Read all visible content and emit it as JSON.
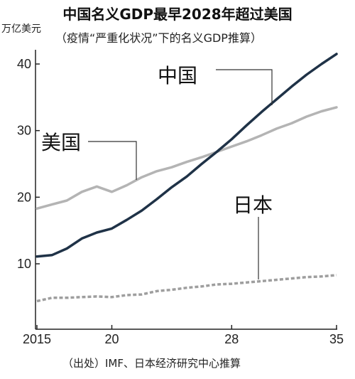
{
  "header": {
    "title": "中国名义GDP最早2028年超过美国",
    "subtitle": "（疫情“严重化状况”下的名义GDP推算）",
    "unit": "万亿美元"
  },
  "footer": {
    "source": "（出处）IMF、日本经济研究中心推算"
  },
  "chart_data": {
    "type": "line",
    "title": "中国名义GDP最早2028年超过美国",
    "subtitle": "（疫情“严重化状况”下的名义GDP推算）",
    "ylabel": "万亿美元",
    "xlim": [
      2015,
      2035
    ],
    "ylim": [
      0,
      45
    ],
    "x_ticks": [
      2015,
      2020,
      2028,
      2035
    ],
    "x_tick_labels": [
      "2015",
      "20",
      "28",
      "35"
    ],
    "y_ticks": [
      10,
      20,
      30,
      40
    ],
    "y_tick_labels": [
      "10",
      "20",
      "30",
      "40"
    ],
    "grid": false,
    "x": [
      2015,
      2016,
      2017,
      2018,
      2019,
      2020,
      2021,
      2022,
      2023,
      2024,
      2025,
      2026,
      2027,
      2028,
      2029,
      2030,
      2031,
      2032,
      2033,
      2034,
      2035
    ],
    "series": [
      {
        "name": "中国",
        "color": "#1f3247",
        "style": "solid",
        "values": [
          11.1,
          11.3,
          12.3,
          13.8,
          14.7,
          15.3,
          16.6,
          18.0,
          19.7,
          21.5,
          23.1,
          25.0,
          26.8,
          28.7,
          30.8,
          32.8,
          34.7,
          36.6,
          38.4,
          40.0,
          41.5
        ]
      },
      {
        "name": "美国",
        "color": "#b4b4b4",
        "style": "solid",
        "values": [
          18.3,
          18.9,
          19.5,
          20.8,
          21.6,
          20.8,
          21.8,
          23.0,
          23.9,
          24.5,
          25.3,
          26.0,
          26.8,
          27.6,
          28.4,
          29.3,
          30.3,
          31.1,
          32.1,
          32.9,
          33.5
        ]
      },
      {
        "name": "日本",
        "color": "#9e9e9e",
        "style": "dashed",
        "values": [
          4.4,
          4.9,
          4.9,
          5.0,
          5.1,
          5.0,
          5.3,
          5.4,
          5.9,
          6.1,
          6.4,
          6.6,
          6.9,
          7.0,
          7.2,
          7.4,
          7.6,
          7.8,
          8.0,
          8.1,
          8.3
        ]
      }
    ]
  }
}
